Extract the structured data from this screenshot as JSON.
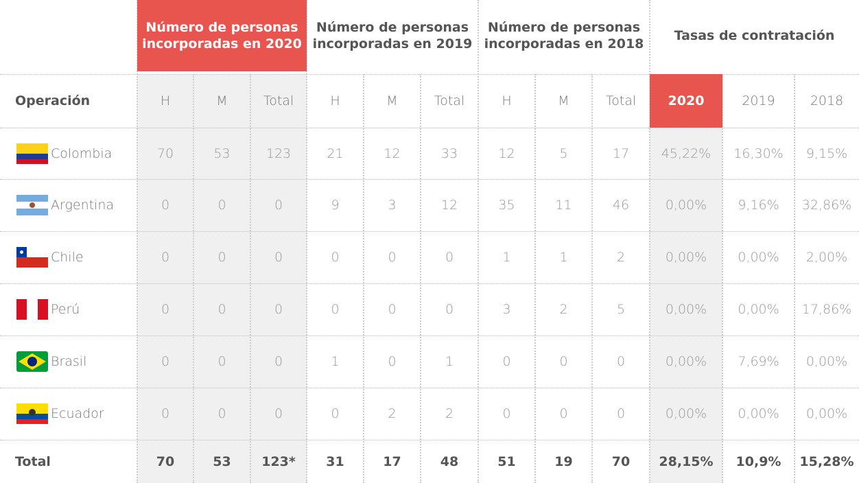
{
  "table": {
    "group_headers": [
      "Número de personas incorporadas en 2020",
      "Número de personas incorporadas en 2019",
      "Número de personas incorporadas en 2018",
      "Tasas de contratación"
    ],
    "columns": [
      "Operación",
      "H",
      "M",
      "Total",
      "H",
      "M",
      "Total",
      "H",
      "M",
      "Total",
      "2020",
      "2019",
      "2018"
    ],
    "rows": [
      [
        "Colombia",
        "70",
        "53",
        "123",
        "21",
        "12",
        "33",
        "12",
        "5",
        "17",
        "45,22%",
        "16,30%",
        "9,15%"
      ],
      [
        "Argentina",
        "0",
        "0",
        "0",
        "9",
        "3",
        "12",
        "35",
        "11",
        "46",
        "0,00%",
        "9,16%",
        "32,86%"
      ],
      [
        "Chile",
        "0",
        "0",
        "0",
        "0",
        "0",
        "0",
        "1",
        "1",
        "2",
        "0,00%",
        "0,00%",
        "2,00%"
      ],
      [
        "Perú",
        "0",
        "0",
        "0",
        "0",
        "0",
        "0",
        "3",
        "2",
        "5",
        "0,00%",
        "0,00%",
        "17,86%"
      ],
      [
        "Brasil",
        "0",
        "0",
        "0",
        "1",
        "0",
        "1",
        "0",
        "0",
        "0",
        "0,00%",
        "7,69%",
        "0,00%"
      ],
      [
        "Ecuador",
        "0",
        "0",
        "0",
        "0",
        "2",
        "2",
        "0",
        "0",
        "0",
        "0,00%",
        "0,00%",
        "0,00%"
      ]
    ],
    "total": [
      "Total",
      "70",
      "53",
      "123*",
      "31",
      "17",
      "48",
      "51",
      "19",
      "70",
      "28,15%",
      "10,9%",
      "15,28%"
    ]
  }
}
